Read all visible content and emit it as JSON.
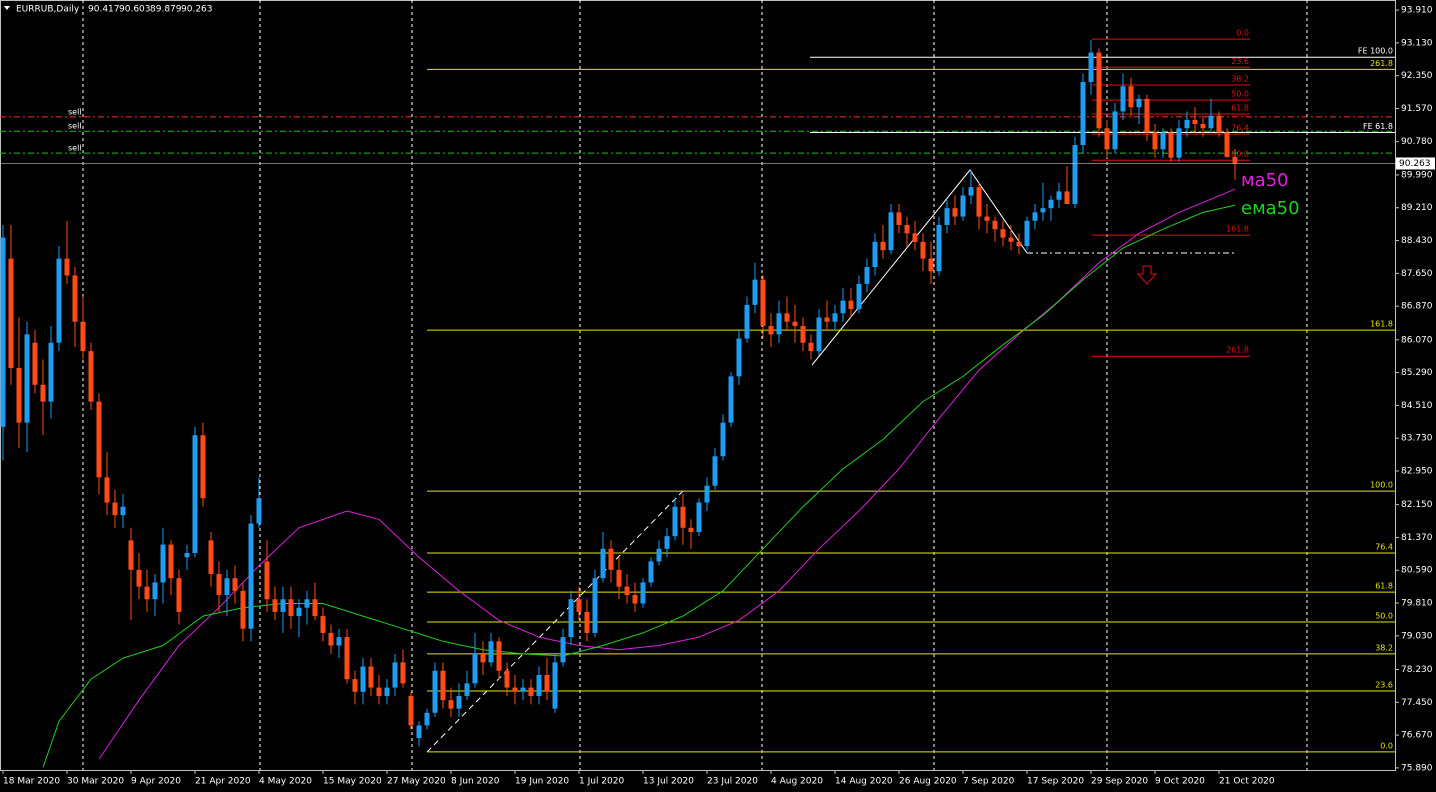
{
  "chart_data": {
    "type": "candlestick",
    "title": "EURRUB,Daily",
    "up_color": "#1e9cf0",
    "down_color": "#ff4b1a",
    "xlim": [
      -0.375,
      174
    ],
    "ylim": [
      75.84,
      94.15
    ],
    "xticks": [
      {
        "value": 0,
        "label": "18 Mar 2020"
      },
      {
        "value": 8,
        "label": "30 Mar 2020"
      },
      {
        "value": 16,
        "label": "9 Apr 2020"
      },
      {
        "value": 24,
        "label": "21 Apr 2020"
      },
      {
        "value": 32,
        "label": "4 May 2020"
      },
      {
        "value": 40,
        "label": "15 May 2020"
      },
      {
        "value": 48,
        "label": "27 May 2020"
      },
      {
        "value": 56,
        "label": "8 Jun 2020"
      },
      {
        "value": 64,
        "label": "19 Jun 2020"
      },
      {
        "value": 72,
        "label": "1 Jul 2020"
      },
      {
        "value": 80,
        "label": "13 Jul 2020"
      },
      {
        "value": 88,
        "label": "23 Jul 2020"
      },
      {
        "value": 96,
        "label": "4 Aug 2020"
      },
      {
        "value": 104,
        "label": "14 Aug 2020"
      },
      {
        "value": 112,
        "label": "26 Aug 2020"
      },
      {
        "value": 120,
        "label": "7 Sep 2020"
      },
      {
        "value": 128,
        "label": "17 Sep 2020"
      },
      {
        "value": 136,
        "label": "29 Sep 2020"
      },
      {
        "value": 144,
        "label": "9 Oct 2020"
      },
      {
        "value": 152,
        "label": "21 Oct 2020"
      }
    ],
    "yticks": [
      {
        "value": 93.91,
        "label": "93.910"
      },
      {
        "value": 93.13,
        "label": "93.130"
      },
      {
        "value": 92.35,
        "label": "92.350"
      },
      {
        "value": 91.57,
        "label": "91.570"
      },
      {
        "value": 90.78,
        "label": "90.780"
      },
      {
        "value": 89.99,
        "label": "89.990"
      },
      {
        "value": 89.21,
        "label": "89.210"
      },
      {
        "value": 88.43,
        "label": "88.430"
      },
      {
        "value": 87.65,
        "label": "87.650"
      },
      {
        "value": 86.87,
        "label": "86.870"
      },
      {
        "value": 86.07,
        "label": "86.070"
      },
      {
        "value": 85.29,
        "label": "85.290"
      },
      {
        "value": 84.51,
        "label": "84.510"
      },
      {
        "value": 83.73,
        "label": "83.730"
      },
      {
        "value": 82.95,
        "label": "82.950"
      },
      {
        "value": 82.15,
        "label": "82.150"
      },
      {
        "value": 81.37,
        "label": "81.370"
      },
      {
        "value": 80.59,
        "label": "80.590"
      },
      {
        "value": 79.81,
        "label": "79.810"
      },
      {
        "value": 79.03,
        "label": "79.030"
      },
      {
        "value": 78.23,
        "label": "78.230"
      },
      {
        "value": 77.45,
        "label": "77.450"
      },
      {
        "value": 76.67,
        "label": "76.670"
      },
      {
        "value": 75.89,
        "label": "75.890"
      }
    ],
    "ohlc": [
      [
        84.0,
        88.8,
        83.2,
        88.5
      ],
      [
        88.0,
        88.8,
        85.0,
        85.4
      ],
      [
        85.4,
        86.6,
        83.5,
        84.1
      ],
      [
        84.1,
        86.5,
        83.4,
        86.2
      ],
      [
        86.0,
        86.3,
        84.8,
        85.0
      ],
      [
        85.0,
        85.6,
        83.8,
        84.6
      ],
      [
        84.6,
        86.4,
        84.2,
        86.0
      ],
      [
        86.0,
        88.3,
        85.8,
        88.0
      ],
      [
        88.0,
        88.9,
        87.4,
        87.6
      ],
      [
        87.6,
        87.8,
        85.9,
        86.5
      ],
      [
        86.5,
        87.1,
        85.6,
        85.8
      ],
      [
        85.8,
        86.0,
        84.4,
        84.6
      ],
      [
        84.6,
        84.8,
        82.4,
        82.8
      ],
      [
        82.8,
        83.4,
        81.9,
        82.2
      ],
      [
        82.2,
        82.5,
        81.6,
        81.9
      ],
      [
        81.9,
        82.4,
        81.6,
        82.1
      ],
      [
        81.3,
        81.6,
        79.4,
        80.6
      ],
      [
        80.6,
        81.0,
        79.9,
        80.2
      ],
      [
        80.2,
        80.6,
        79.6,
        79.9
      ],
      [
        79.9,
        80.5,
        79.5,
        80.3
      ],
      [
        80.3,
        81.6,
        79.8,
        81.2
      ],
      [
        81.2,
        81.3,
        80.0,
        80.4
      ],
      [
        80.4,
        80.6,
        79.3,
        79.6
      ],
      [
        80.9,
        81.2,
        80.6,
        81.0
      ],
      [
        81.0,
        84.0,
        80.9,
        83.8
      ],
      [
        83.8,
        84.1,
        82.1,
        82.3
      ],
      [
        81.3,
        81.5,
        80.2,
        80.5
      ],
      [
        80.5,
        80.8,
        79.6,
        80.0
      ],
      [
        80.0,
        80.6,
        79.5,
        80.4
      ],
      [
        80.4,
        80.7,
        79.8,
        80.1
      ],
      [
        80.1,
        80.3,
        78.9,
        79.2
      ],
      [
        79.2,
        81.9,
        78.9,
        81.7
      ],
      [
        81.7,
        82.8,
        81.6,
        82.3
      ],
      [
        80.8,
        81.3,
        79.6,
        79.9
      ],
      [
        79.9,
        80.2,
        79.4,
        79.6
      ],
      [
        79.6,
        80.2,
        79.1,
        79.9
      ],
      [
        79.9,
        80.2,
        79.2,
        79.5
      ],
      [
        79.5,
        79.9,
        79.0,
        79.7
      ],
      [
        79.7,
        80.1,
        79.3,
        79.9
      ],
      [
        79.9,
        80.3,
        79.4,
        79.5
      ],
      [
        79.5,
        79.7,
        78.9,
        79.1
      ],
      [
        79.1,
        79.3,
        78.6,
        78.8
      ],
      [
        78.8,
        79.2,
        78.5,
        79.0
      ],
      [
        79.0,
        79.2,
        77.9,
        78.0
      ],
      [
        78.0,
        78.2,
        77.4,
        77.7
      ],
      [
        77.7,
        78.5,
        77.4,
        78.3
      ],
      [
        78.3,
        78.5,
        77.6,
        77.8
      ],
      [
        77.8,
        78.1,
        77.4,
        77.6
      ],
      [
        77.6,
        78.0,
        77.4,
        77.8
      ],
      [
        77.8,
        78.6,
        77.6,
        78.4
      ],
      [
        78.4,
        78.7,
        77.8,
        77.9
      ],
      [
        77.6,
        77.7,
        76.8,
        76.9
      ],
      [
        76.6,
        77.0,
        76.4,
        76.9
      ],
      [
        76.9,
        77.3,
        76.8,
        77.2
      ],
      [
        77.2,
        78.4,
        77.1,
        78.2
      ],
      [
        78.2,
        78.4,
        77.3,
        77.5
      ],
      [
        77.5,
        77.8,
        77.1,
        77.3
      ],
      [
        77.3,
        77.9,
        77.1,
        77.6
      ],
      [
        77.6,
        78.2,
        77.5,
        77.9
      ],
      [
        77.9,
        79.1,
        77.8,
        78.6
      ],
      [
        78.6,
        78.9,
        78.1,
        78.4
      ],
      [
        78.4,
        79.1,
        78.3,
        78.9
      ],
      [
        78.9,
        79.0,
        78.0,
        78.2
      ],
      [
        78.2,
        78.4,
        77.6,
        77.8
      ],
      [
        77.8,
        78.1,
        77.4,
        77.7
      ],
      [
        77.7,
        78.0,
        77.5,
        77.8
      ],
      [
        77.8,
        78.0,
        77.4,
        77.6
      ],
      [
        77.6,
        78.3,
        77.4,
        78.1
      ],
      [
        78.1,
        78.5,
        77.5,
        77.7
      ],
      [
        77.3,
        78.6,
        77.2,
        78.4
      ],
      [
        78.4,
        79.2,
        78.3,
        79.0
      ],
      [
        79.0,
        80.1,
        78.8,
        79.9
      ],
      [
        79.9,
        80.2,
        79.4,
        79.6
      ],
      [
        79.6,
        79.9,
        78.9,
        79.1
      ],
      [
        79.1,
        80.6,
        79.0,
        80.4
      ],
      [
        80.4,
        81.5,
        80.3,
        81.1
      ],
      [
        81.1,
        81.3,
        80.3,
        80.6
      ],
      [
        80.6,
        80.9,
        79.9,
        80.2
      ],
      [
        80.2,
        80.5,
        79.8,
        80.0
      ],
      [
        80.0,
        80.3,
        79.6,
        79.8
      ],
      [
        79.8,
        80.4,
        79.7,
        80.3
      ],
      [
        80.3,
        80.9,
        80.2,
        80.8
      ],
      [
        80.8,
        81.3,
        80.7,
        81.1
      ],
      [
        81.1,
        81.6,
        80.9,
        81.4
      ],
      [
        81.4,
        82.3,
        81.3,
        82.1
      ],
      [
        82.1,
        82.4,
        81.2,
        81.6
      ],
      [
        81.6,
        81.8,
        81.1,
        81.5
      ],
      [
        81.5,
        82.3,
        81.4,
        82.2
      ],
      [
        82.2,
        82.8,
        82.0,
        82.6
      ],
      [
        82.6,
        83.5,
        82.5,
        83.3
      ],
      [
        83.3,
        84.3,
        83.2,
        84.1
      ],
      [
        84.1,
        85.3,
        84.0,
        85.2
      ],
      [
        85.2,
        86.3,
        85.0,
        86.1
      ],
      [
        86.1,
        87.1,
        86.0,
        86.9
      ],
      [
        86.9,
        87.9,
        86.7,
        87.5
      ],
      [
        87.5,
        87.6,
        86.1,
        86.4
      ],
      [
        86.4,
        86.7,
        85.9,
        86.2
      ],
      [
        86.2,
        87.0,
        86.0,
        86.7
      ],
      [
        86.7,
        87.1,
        86.3,
        86.5
      ],
      [
        86.5,
        86.9,
        86.0,
        86.4
      ],
      [
        86.4,
        86.6,
        85.8,
        86.0
      ],
      [
        86.0,
        86.2,
        85.6,
        85.8
      ],
      [
        85.8,
        86.8,
        85.7,
        86.6
      ],
      [
        86.6,
        87.0,
        86.3,
        86.5
      ],
      [
        86.5,
        86.9,
        86.3,
        86.7
      ],
      [
        86.7,
        87.3,
        86.5,
        87.0
      ],
      [
        87.0,
        87.3,
        86.6,
        86.8
      ],
      [
        86.8,
        87.6,
        86.7,
        87.4
      ],
      [
        87.4,
        88.0,
        87.2,
        87.8
      ],
      [
        87.8,
        88.6,
        87.6,
        88.4
      ],
      [
        88.4,
        88.8,
        88.0,
        88.2
      ],
      [
        88.2,
        89.3,
        88.1,
        89.1
      ],
      [
        89.1,
        89.3,
        88.6,
        88.8
      ],
      [
        88.8,
        89.0,
        88.3,
        88.6
      ],
      [
        88.6,
        88.9,
        88.2,
        88.4
      ],
      [
        88.4,
        88.6,
        87.7,
        88.0
      ],
      [
        88.0,
        88.4,
        87.4,
        87.7
      ],
      [
        87.7,
        89.0,
        87.6,
        88.8
      ],
      [
        88.8,
        89.4,
        88.6,
        89.2
      ],
      [
        89.2,
        89.5,
        88.8,
        89.0
      ],
      [
        89.0,
        89.7,
        88.9,
        89.5
      ],
      [
        89.5,
        90.1,
        89.3,
        89.7
      ],
      [
        89.7,
        89.8,
        88.7,
        89.0
      ],
      [
        89.0,
        89.3,
        88.6,
        88.9
      ],
      [
        88.9,
        89.0,
        88.4,
        88.7
      ],
      [
        88.7,
        88.9,
        88.3,
        88.5
      ],
      [
        88.5,
        88.8,
        88.2,
        88.4
      ],
      [
        88.4,
        88.6,
        88.1,
        88.3
      ],
      [
        88.3,
        89.0,
        88.2,
        88.9
      ],
      [
        88.9,
        89.3,
        88.7,
        89.1
      ],
      [
        89.1,
        89.8,
        88.9,
        89.2
      ],
      [
        89.2,
        89.5,
        88.9,
        89.4
      ],
      [
        89.4,
        89.8,
        89.2,
        89.6
      ],
      [
        89.6,
        90.2,
        89.3,
        89.3
      ],
      [
        89.3,
        90.9,
        89.2,
        90.7
      ],
      [
        90.7,
        92.4,
        90.5,
        92.2
      ],
      [
        92.2,
        93.2,
        91.9,
        92.9
      ],
      [
        92.9,
        93.0,
        90.9,
        91.1
      ],
      [
        91.1,
        91.3,
        90.4,
        90.6
      ],
      [
        90.6,
        91.7,
        90.5,
        91.5
      ],
      [
        91.5,
        92.4,
        91.3,
        92.1
      ],
      [
        92.1,
        92.3,
        91.4,
        91.6
      ],
      [
        91.6,
        91.9,
        91.2,
        91.8
      ],
      [
        91.8,
        91.9,
        90.8,
        91.0
      ],
      [
        91.0,
        91.2,
        90.4,
        90.6
      ],
      [
        90.6,
        91.1,
        90.4,
        91.0
      ],
      [
        91.0,
        91.1,
        90.3,
        90.4
      ],
      [
        90.4,
        91.3,
        90.3,
        91.1
      ],
      [
        91.1,
        91.5,
        90.9,
        91.3
      ],
      [
        91.3,
        91.6,
        91.0,
        91.2
      ],
      [
        91.2,
        91.4,
        90.9,
        91.1
      ],
      [
        91.1,
        91.8,
        91.0,
        91.4
      ],
      [
        91.4,
        91.5,
        90.9,
        91.0
      ],
      [
        91.0,
        91.1,
        90.4,
        90.42
      ],
      [
        90.417,
        90.603,
        89.879,
        90.263
      ]
    ],
    "lines": [
      {
        "name": "ма50",
        "color": "#e020e0",
        "x": [
          12,
          17,
          22,
          27,
          32,
          37,
          43,
          47,
          52,
          57,
          62,
          67,
          72,
          77,
          82,
          87,
          92,
          97,
          102,
          107,
          112,
          117,
          122,
          127,
          132,
          137,
          142,
          147,
          154
        ],
        "values": [
          76.1,
          77.5,
          78.8,
          79.7,
          80.7,
          81.6,
          82.0,
          81.8,
          80.9,
          80.1,
          79.4,
          79.0,
          78.8,
          78.7,
          78.8,
          79.0,
          79.4,
          80.1,
          81.1,
          82.0,
          83.0,
          84.2,
          85.35,
          86.2,
          87.0,
          87.9,
          88.6,
          89.1,
          89.65
        ]
      },
      {
        "name": "ема50",
        "color": "#20d020",
        "x": [
          5,
          7,
          11,
          15,
          20,
          25,
          30,
          35,
          40,
          45,
          50,
          55,
          60,
          65,
          70,
          75,
          80,
          85,
          90,
          95,
          100,
          105,
          110,
          115,
          120,
          125,
          130,
          135,
          140,
          145,
          150,
          154
        ],
        "values": [
          75.9,
          77.0,
          78.0,
          78.5,
          78.8,
          79.5,
          79.7,
          79.8,
          79.8,
          79.5,
          79.2,
          78.9,
          78.7,
          78.6,
          78.55,
          78.8,
          79.1,
          79.5,
          80.1,
          81.1,
          82.1,
          83.0,
          83.7,
          84.6,
          85.2,
          85.95,
          86.65,
          87.5,
          88.25,
          88.7,
          89.1,
          89.27
        ]
      }
    ],
    "fibo_retracement": {
      "color": "#e6e600",
      "levels": [
        {
          "label": "0.0",
          "price": 76.27
        },
        {
          "label": "23.6",
          "price": 77.72
        },
        {
          "label": "38.2",
          "price": 78.6
        },
        {
          "label": "50.0",
          "price": 79.36
        },
        {
          "label": "61.8",
          "price": 80.07
        },
        {
          "label": "76.4",
          "price": 81.0
        },
        {
          "label": "100.0",
          "price": 82.47
        },
        {
          "label": "161.8",
          "price": 86.3
        },
        {
          "label": "261.8",
          "price": 92.5
        }
      ]
    },
    "fibo_expansion": {
      "color": "#e01010",
      "levels": [
        {
          "label": "0.0",
          "price": 93.22
        },
        {
          "label": "23.6",
          "price": 92.55
        },
        {
          "label": "38.2",
          "price": 92.13
        },
        {
          "label": "50.0",
          "price": 91.77
        },
        {
          "label": "61.8",
          "price": 91.44
        },
        {
          "label": "76.4",
          "price": 90.96
        },
        {
          "label": "100.0",
          "price": 90.34
        },
        {
          "label": "161.8",
          "price": 88.56
        },
        {
          "label": "261.8",
          "price": 85.68
        }
      ]
    },
    "fe_lines": [
      {
        "label": "FE 100.0",
        "price": 92.79
      },
      {
        "label": "FE 61.8",
        "price": 91.0
      }
    ],
    "orders": [
      {
        "label": "sell",
        "price": 91.37,
        "color": "#ff3030"
      },
      {
        "label": "sell",
        "price": 91.03,
        "color": "#20c020"
      },
      {
        "label": "sell",
        "price": 90.51,
        "color": "#20c020"
      }
    ]
  }
}
